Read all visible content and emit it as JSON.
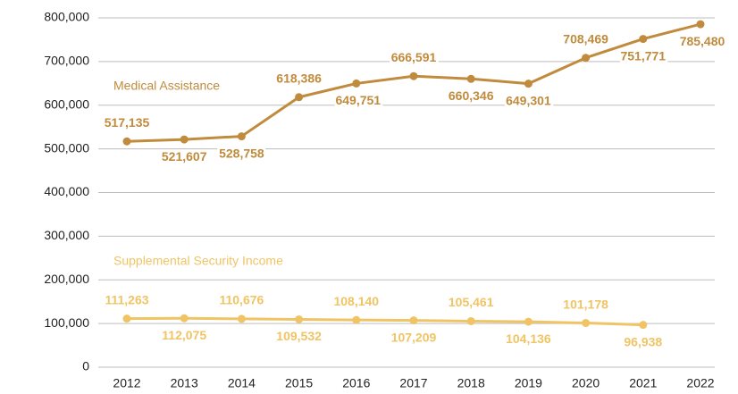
{
  "chart_data": {
    "type": "line",
    "x": [
      2012,
      2013,
      2014,
      2015,
      2016,
      2017,
      2018,
      2019,
      2020,
      2021,
      2022
    ],
    "series": [
      {
        "name": "Medical Assistance",
        "color": "#c08b3c",
        "values": [
          517135,
          521607,
          528758,
          618386,
          649751,
          666591,
          660346,
          649301,
          708469,
          751771,
          785480
        ],
        "value_labels": [
          "517,135",
          "521,607",
          "528,758",
          "618,386",
          "649,751",
          "666,591",
          "660,346",
          "649,301",
          "708,469",
          "751,771",
          "785,480"
        ]
      },
      {
        "name": "Supplemental Security Income",
        "color": "#f0c465",
        "values": [
          111263,
          112075,
          110676,
          109532,
          108140,
          107209,
          105461,
          104136,
          101178,
          96938,
          null
        ],
        "value_labels": [
          "111,263",
          "112,075",
          "110,676",
          "109,532",
          "108,140",
          "107,209",
          "105,461",
          "104,136",
          "101,178",
          "96,938",
          null
        ]
      }
    ],
    "ylim": [
      0,
      800000
    ],
    "yticks": [
      0,
      {
        "value": 100000,
        "label": "100,000"
      },
      {
        "value": 200000,
        "label": "200,000"
      },
      {
        "value": 300000,
        "label": "300,000"
      },
      {
        "value": 400000,
        "label": "400,000"
      },
      {
        "value": 500000,
        "label": "500,000"
      },
      {
        "value": 600000,
        "label": "600,000"
      },
      {
        "value": 700000,
        "label": "700,000"
      },
      {
        "value": 800000,
        "label": "800,000"
      }
    ],
    "grid": true
  }
}
